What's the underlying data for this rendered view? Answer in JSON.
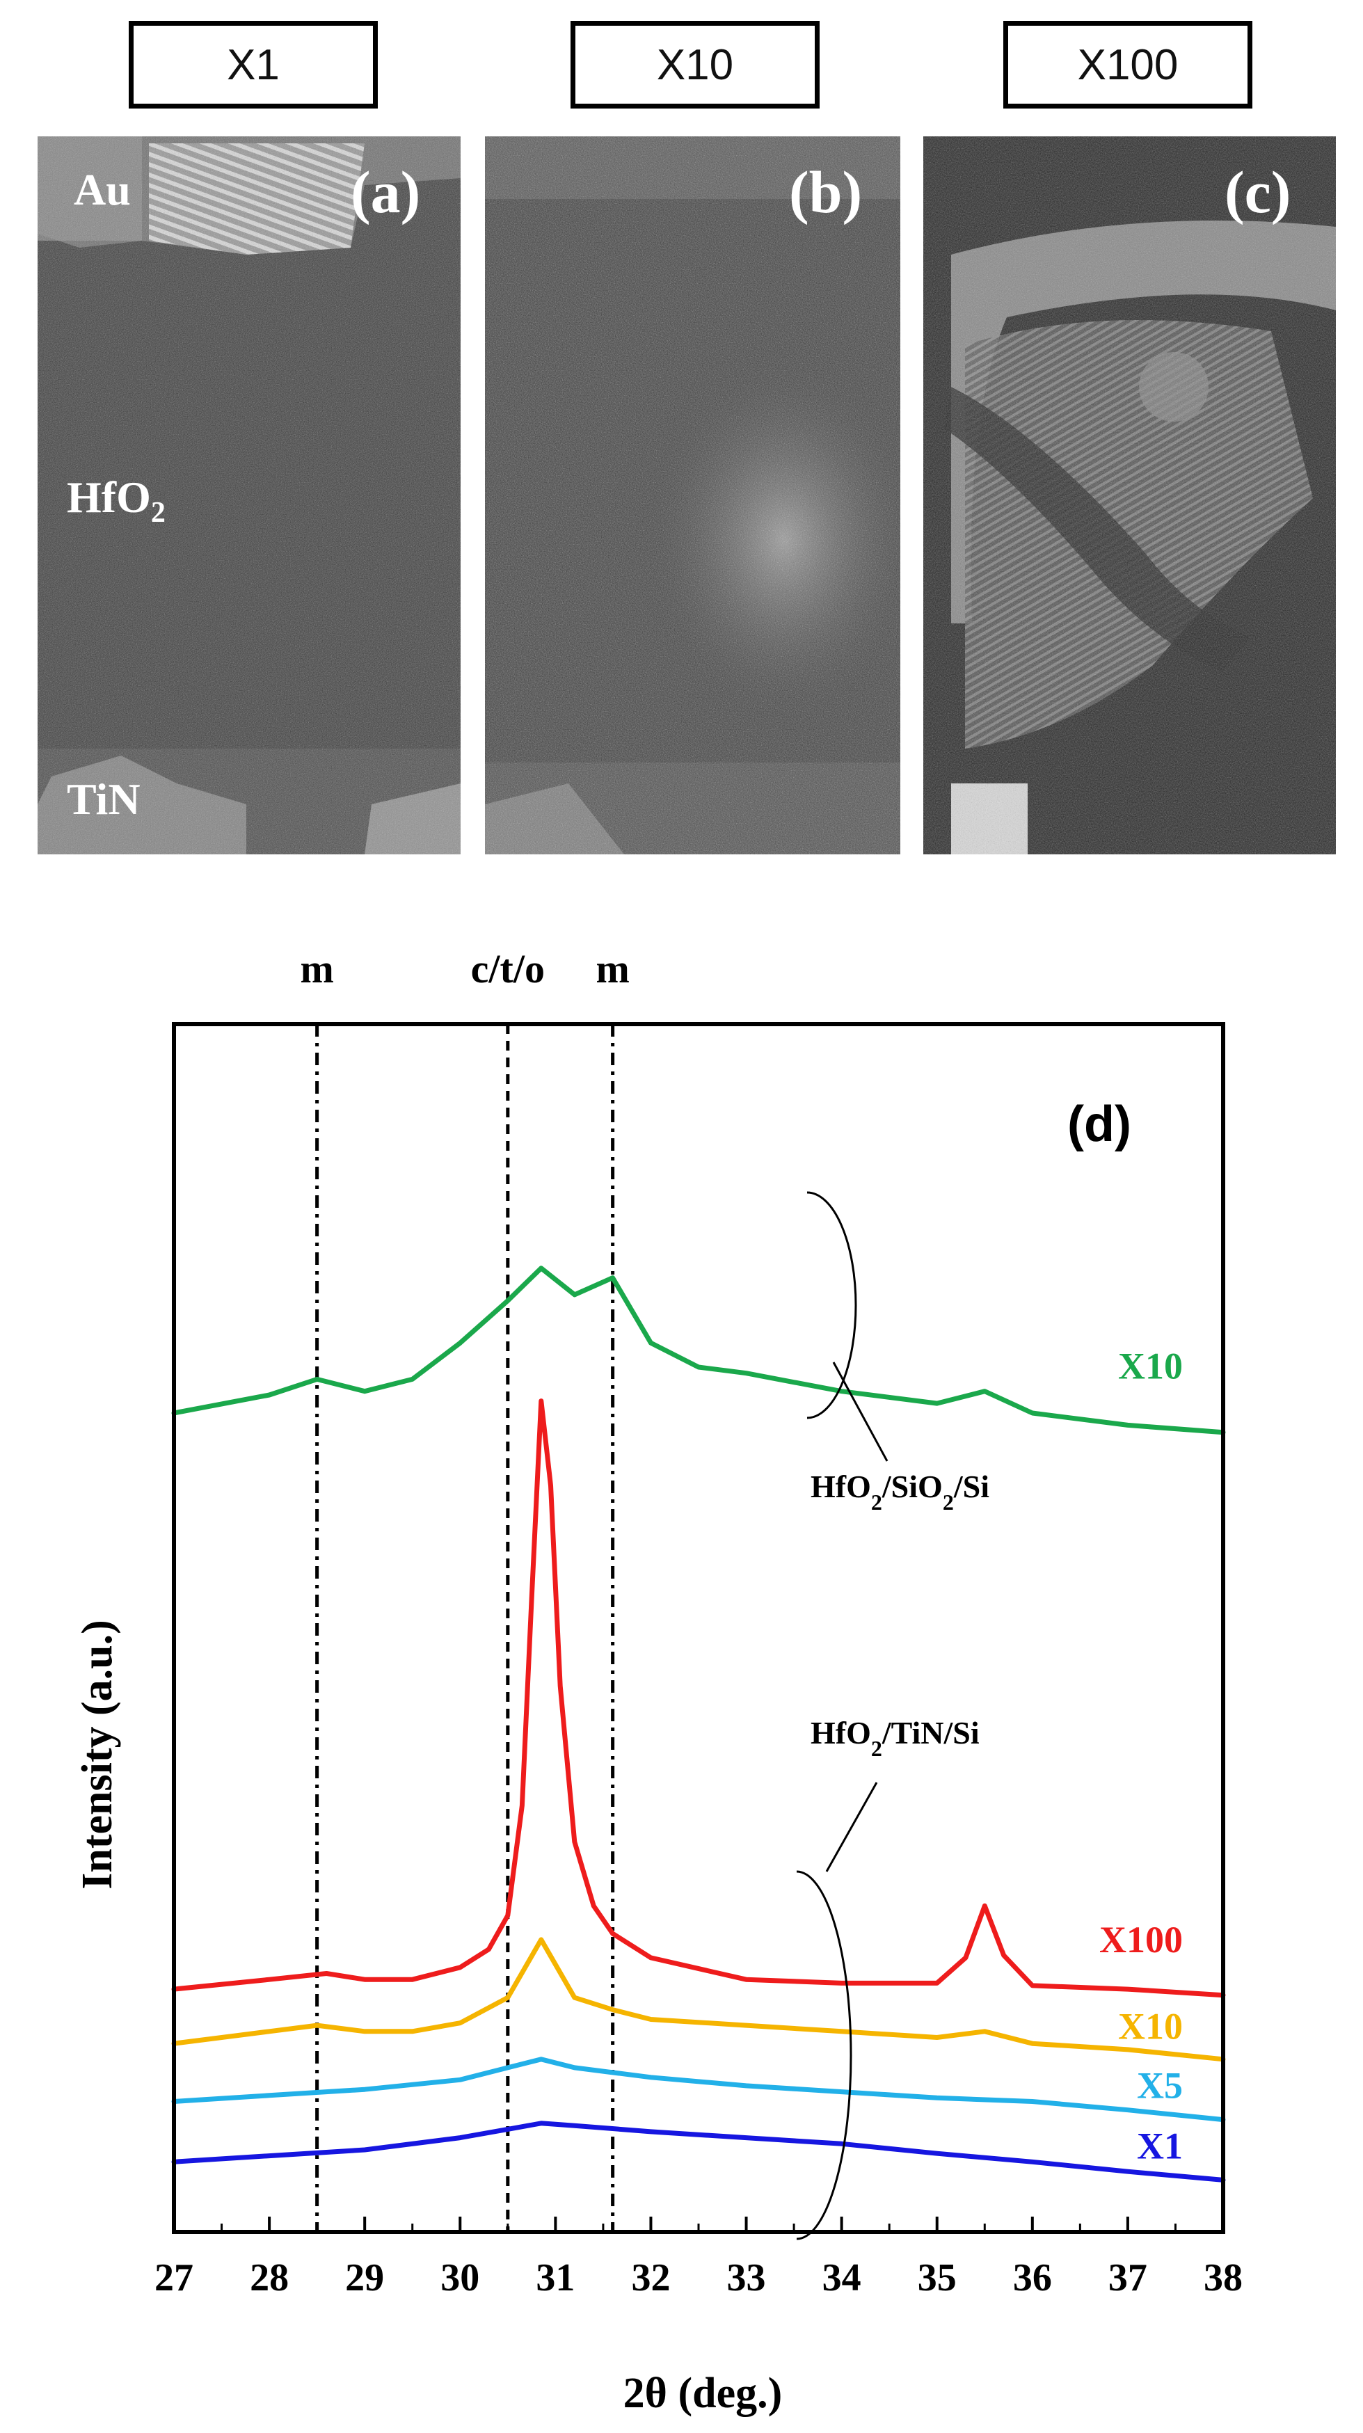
{
  "tem_panels": [
    {
      "box_label": "X1",
      "panel_letter": "(a)",
      "layers": [
        {
          "text": "Au",
          "sub": "",
          "fill": "#cfcfcf"
        },
        {
          "text": "HfO",
          "sub": "2",
          "fill": "#3a3a3a"
        },
        {
          "text": "TiN",
          "sub": "",
          "fill": "#8a8a8a"
        }
      ]
    },
    {
      "box_label": "X10",
      "panel_letter": "(b)",
      "layers": []
    },
    {
      "box_label": "X100",
      "panel_letter": "(c)",
      "layers": []
    }
  ],
  "chart_data": {
    "type": "line",
    "panel_label": "(d)",
    "xlabel": "2θ (deg.)",
    "ylabel": "Intensity (a.u.)",
    "xlim": [
      27,
      38
    ],
    "ylim": [
      0,
      100
    ],
    "xticks": [
      27,
      28,
      29,
      30,
      31,
      32,
      33,
      34,
      35,
      36,
      37,
      38
    ],
    "yticks_shown": false,
    "grid": false,
    "reference_lines": [
      {
        "x": 28.5,
        "label": "m",
        "style": "dashdot"
      },
      {
        "x": 30.5,
        "label": "c/t/o",
        "style": "dashed"
      },
      {
        "x": 31.6,
        "label": "m",
        "style": "dashdot"
      }
    ],
    "groups": [
      {
        "label_main": "HfO",
        "label_sub1": "2",
        "label_mid": "/SiO",
        "label_sub2": "2",
        "label_tail": "/Si",
        "series": [
          "X10 (SiO2)"
        ]
      },
      {
        "label_main": "HfO",
        "label_sub1": "2",
        "label_mid": "/TiN/Si",
        "label_sub2": "",
        "label_tail": "",
        "series": [
          "X100",
          "X10",
          "X5",
          "X1"
        ]
      }
    ],
    "series": [
      {
        "name": "X10",
        "color": "#1aa84b",
        "x": [
          27,
          28,
          28.5,
          29,
          29.5,
          30,
          30.5,
          30.85,
          31.2,
          31.6,
          32,
          32.5,
          33,
          34,
          35,
          35.5,
          36,
          37,
          38
        ],
        "y": [
          67.8,
          69.3,
          70.6,
          69.6,
          70.6,
          73.6,
          77.1,
          79.8,
          77.6,
          79.0,
          73.6,
          71.6,
          71.1,
          69.6,
          68.6,
          69.6,
          67.8,
          66.8,
          66.2
        ]
      },
      {
        "name": "X100",
        "color": "#ee1c1c",
        "x": [
          27,
          28,
          28.6,
          29,
          29.5,
          30,
          30.3,
          30.5,
          30.65,
          30.75,
          30.85,
          30.95,
          31.05,
          31.2,
          31.4,
          31.6,
          32,
          33,
          34,
          35,
          35.3,
          35.5,
          35.7,
          36,
          37,
          38
        ],
        "y": [
          20.1,
          20.9,
          21.4,
          20.9,
          20.9,
          21.9,
          23.4,
          26.2,
          35.3,
          52.4,
          68.8,
          61.8,
          45.2,
          32.3,
          27.0,
          24.7,
          22.7,
          20.9,
          20.6,
          20.6,
          22.7,
          27.0,
          22.9,
          20.4,
          20.1,
          19.6
        ]
      },
      {
        "name": "X10",
        "color": "#f5b400",
        "x": [
          27,
          28,
          28.5,
          29,
          29.5,
          30,
          30.5,
          30.85,
          31.2,
          31.6,
          32,
          33,
          34,
          35,
          35.5,
          36,
          37,
          38
        ],
        "y": [
          15.6,
          16.6,
          17.1,
          16.6,
          16.6,
          17.3,
          19.4,
          24.2,
          19.4,
          18.4,
          17.6,
          17.1,
          16.6,
          16.1,
          16.6,
          15.6,
          15.1,
          14.3
        ]
      },
      {
        "name": "X5",
        "color": "#22b0e8",
        "x": [
          27,
          28,
          29,
          30,
          30.5,
          30.85,
          31.2,
          32,
          33,
          34,
          35,
          36,
          37,
          38
        ],
        "y": [
          10.8,
          11.3,
          11.8,
          12.6,
          13.6,
          14.3,
          13.6,
          12.8,
          12.1,
          11.6,
          11.1,
          10.8,
          10.1,
          9.3
        ]
      },
      {
        "name": "X1",
        "color": "#1616e0",
        "x": [
          27,
          28,
          29,
          30,
          30.5,
          30.85,
          31.2,
          32,
          33,
          34,
          35,
          36,
          37,
          38
        ],
        "y": [
          5.8,
          6.3,
          6.8,
          7.8,
          8.5,
          9.0,
          8.8,
          8.3,
          7.8,
          7.3,
          6.5,
          5.8,
          5.0,
          4.3
        ]
      }
    ]
  }
}
